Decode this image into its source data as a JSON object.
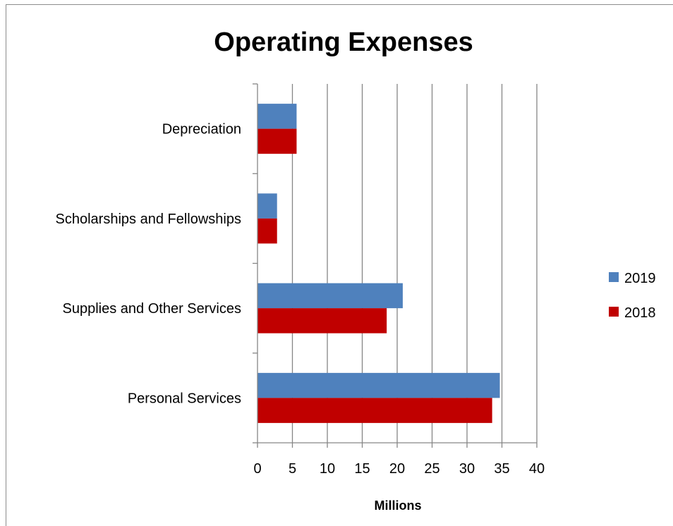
{
  "chart_data": {
    "type": "bar",
    "orientation": "horizontal",
    "title": "Operating Expenses",
    "xlabel": "Millions",
    "ylabel": "",
    "categories": [
      "Personal Services",
      "Supplies and Other Services",
      "Scholarships and Fellowships",
      "Depreciation"
    ],
    "series": [
      {
        "name": "2019",
        "color": "#4f81bd",
        "values": [
          34.7,
          20.8,
          2.8,
          5.6
        ]
      },
      {
        "name": "2018",
        "color": "#c00000",
        "values": [
          33.6,
          18.5,
          2.8,
          5.6
        ]
      }
    ],
    "xlim": [
      0,
      40
    ],
    "xticks": [
      "0",
      "5",
      "10",
      "15",
      "20",
      "25",
      "30",
      "35",
      "40"
    ],
    "grid": true,
    "legend_position": "right"
  }
}
